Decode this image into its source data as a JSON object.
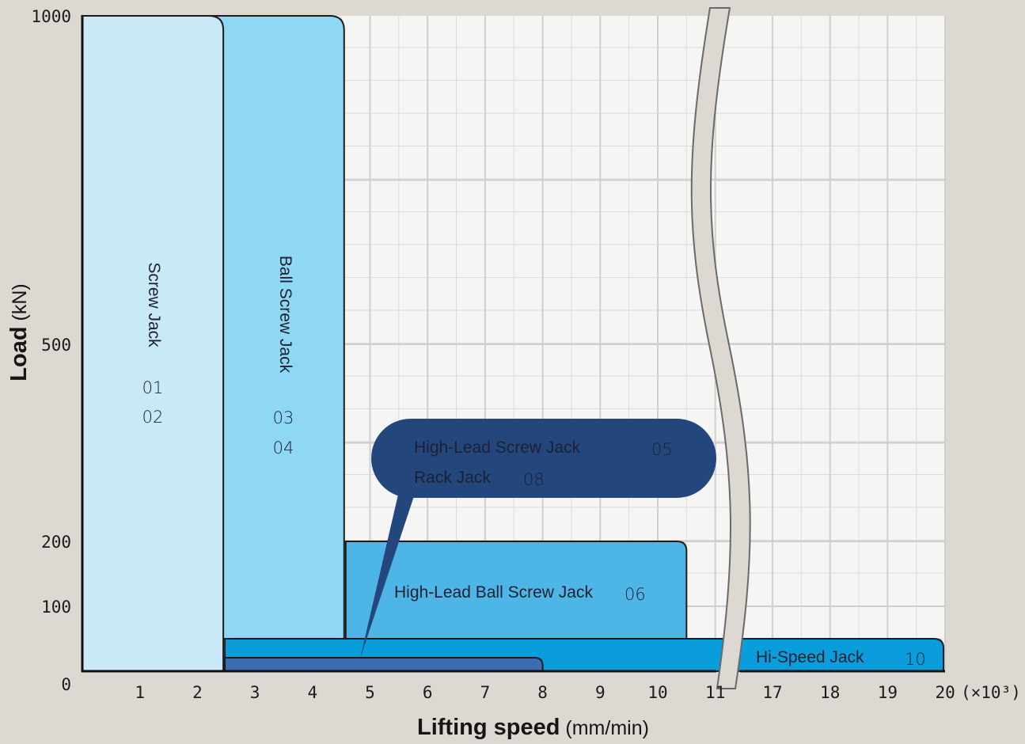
{
  "chart_data": {
    "type": "bar",
    "xlabel": {
      "bold": "Lifting speed",
      "unit": " (mm/min)"
    },
    "ylabel": {
      "bold": "Load",
      "unit": " (kN)"
    },
    "x_ticks": [
      "1",
      "2",
      "3",
      "4",
      "5",
      "6",
      "7",
      "8",
      "9",
      "10",
      "11",
      "17",
      "18",
      "19",
      "20"
    ],
    "x_multiplier": "(×10³)",
    "x_axis_break": "between 11 and 17",
    "y_ticks": [
      {
        "value": 0,
        "label": "0"
      },
      {
        "value": 100,
        "label": "100"
      },
      {
        "value": 200,
        "label": "200"
      },
      {
        "value": 500,
        "label": "500"
      },
      {
        "value": 1000,
        "label": "1000"
      }
    ],
    "ylim": [
      0,
      1000
    ],
    "grid": true,
    "series": [
      {
        "name": "Screw Jack",
        "numbers": [
          "01",
          "02"
        ],
        "x_max": 2.45,
        "y_max": 1000,
        "color": "#c9e9f9"
      },
      {
        "name": "Ball Screw Jack",
        "numbers": [
          "03",
          "04"
        ],
        "x_max": 4.55,
        "y_max": 1000,
        "color": "#8ed8f5"
      },
      {
        "name": "High-Lead Ball Screw Jack",
        "numbers": [
          "06"
        ],
        "x_max": 10.5,
        "y_max": 200,
        "color": "#4eb6e7"
      },
      {
        "name": "Hi-Speed Jack",
        "numbers": [
          "10"
        ],
        "x_max": 20,
        "y_max": 50,
        "color": "#0a9ddc"
      },
      {
        "name_lines": [
          "High-Lead Screw Jack",
          "Rack Jack"
        ],
        "numbers": [
          "05",
          "08"
        ],
        "x_max": 8,
        "y_max": 20,
        "color": "#3b6cb0",
        "callout_color": "#23467d"
      }
    ]
  }
}
